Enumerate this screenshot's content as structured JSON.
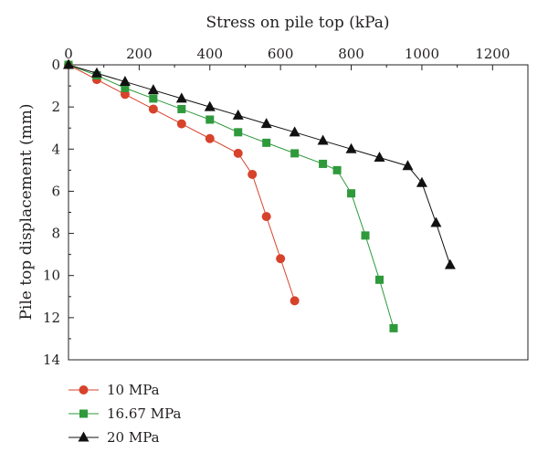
{
  "chart_data": {
    "type": "line",
    "title": "",
    "xlabel": "Stress on pile top (kPa)",
    "ylabel": "Pile top displacement (mm)",
    "x_axis_position": "top",
    "y_axis_inverted": true,
    "xlim": [
      0,
      1300
    ],
    "ylim": [
      0,
      14
    ],
    "xticks": [
      0,
      200,
      400,
      600,
      800,
      1000,
      1200
    ],
    "yticks": [
      0,
      2,
      4,
      6,
      8,
      10,
      12,
      14
    ],
    "grid": false,
    "legend_position": "bottom-left",
    "series": [
      {
        "name": "10 MPa",
        "color": "#d7422b",
        "marker": "circle",
        "x": [
          0,
          80,
          160,
          240,
          320,
          400,
          480,
          520,
          560,
          600,
          640
        ],
        "y": [
          0,
          0.7,
          1.4,
          2.1,
          2.8,
          3.5,
          4.2,
          5.2,
          7.2,
          9.2,
          11.2
        ]
      },
      {
        "name": "16.67 MPa",
        "color": "#2e9a3b",
        "marker": "square",
        "x": [
          0,
          80,
          160,
          240,
          320,
          400,
          480,
          560,
          640,
          720,
          760,
          800,
          840,
          880,
          920
        ],
        "y": [
          0,
          0.5,
          1.1,
          1.6,
          2.1,
          2.6,
          3.2,
          3.7,
          4.2,
          4.7,
          5.0,
          6.1,
          8.1,
          10.2,
          12.5
        ]
      },
      {
        "name": "20 MPa",
        "color": "#111111",
        "marker": "triangle",
        "x": [
          0,
          80,
          160,
          240,
          320,
          400,
          480,
          560,
          640,
          720,
          800,
          880,
          960,
          1000,
          1040,
          1080
        ],
        "y": [
          0,
          0.4,
          0.8,
          1.2,
          1.6,
          2.0,
          2.4,
          2.8,
          3.2,
          3.6,
          4.0,
          4.4,
          4.8,
          5.6,
          7.5,
          9.5
        ]
      }
    ]
  }
}
